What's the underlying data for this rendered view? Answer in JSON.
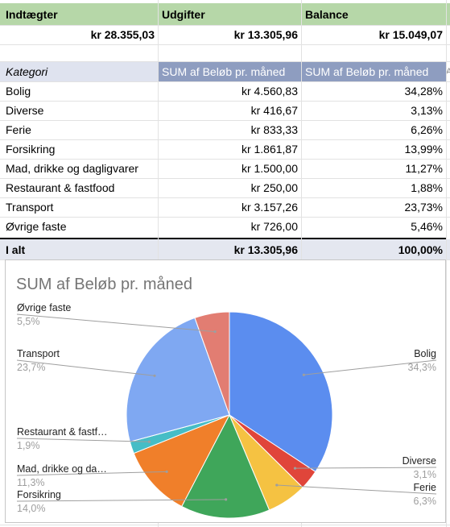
{
  "summary": {
    "headers": [
      "Indtægter",
      "Udgifter",
      "Balance"
    ],
    "values": [
      "kr 28.355,03",
      "kr 13.305,96",
      "kr 15.049,07"
    ]
  },
  "pivot": {
    "col_kategori": "Kategori",
    "col_sum": "SUM af Beløb pr. måned",
    "col_pct": "SUM af Beløb pr. måned",
    "col_extra": "A",
    "rows": [
      {
        "kategori": "Bolig",
        "sum": "kr 4.560,83",
        "pct": "34,28%"
      },
      {
        "kategori": "Diverse",
        "sum": "kr 416,67",
        "pct": "3,13%"
      },
      {
        "kategori": "Ferie",
        "sum": "kr 833,33",
        "pct": "6,26%"
      },
      {
        "kategori": "Forsikring",
        "sum": "kr 1.861,87",
        "pct": "13,99%"
      },
      {
        "kategori": "Mad, drikke og dagligvarer",
        "sum": "kr 1.500,00",
        "pct": "11,27%"
      },
      {
        "kategori": "Restaurant & fastfood",
        "sum": "kr 250,00",
        "pct": "1,88%"
      },
      {
        "kategori": "Transport",
        "sum": "kr 3.157,26",
        "pct": "23,73%"
      },
      {
        "kategori": "Øvrige faste",
        "sum": "kr 726,00",
        "pct": "5,46%"
      }
    ],
    "total": {
      "label": "I alt",
      "sum": "kr 13.305,96",
      "pct": "100,00%"
    }
  },
  "chart_data": {
    "type": "pie",
    "title": "SUM af Beløb pr. måned",
    "slices": [
      {
        "name": "Bolig",
        "display_name": "Bolig",
        "value": 4560.83,
        "pct_label": "34,3%",
        "color": "#5b8def"
      },
      {
        "name": "Diverse",
        "display_name": "Diverse",
        "value": 416.67,
        "pct_label": "3,1%",
        "color": "#e0453a"
      },
      {
        "name": "Ferie",
        "display_name": "Ferie",
        "value": 833.33,
        "pct_label": "6,3%",
        "color": "#f5c242"
      },
      {
        "name": "Forsikring",
        "display_name": "Forsikring",
        "value": 1861.87,
        "pct_label": "14,0%",
        "color": "#3fa65a"
      },
      {
        "name": "Mad, drikke og dagligvarer",
        "display_name": "Mad, drikke og da…",
        "value": 1500.0,
        "pct_label": "11,3%",
        "color": "#f07f2a"
      },
      {
        "name": "Restaurant & fastfood",
        "display_name": "Restaurant & fastf…",
        "value": 250.0,
        "pct_label": "1,9%",
        "color": "#46bdc6"
      },
      {
        "name": "Transport",
        "display_name": "Transport",
        "value": 3157.26,
        "pct_label": "23,7%",
        "color": "#7fa8f2"
      },
      {
        "name": "Øvrige faste",
        "display_name": "Øvrige faste",
        "value": 726.0,
        "pct_label": "5,5%",
        "color": "#e27d72"
      }
    ],
    "legend": "labels-outside"
  }
}
